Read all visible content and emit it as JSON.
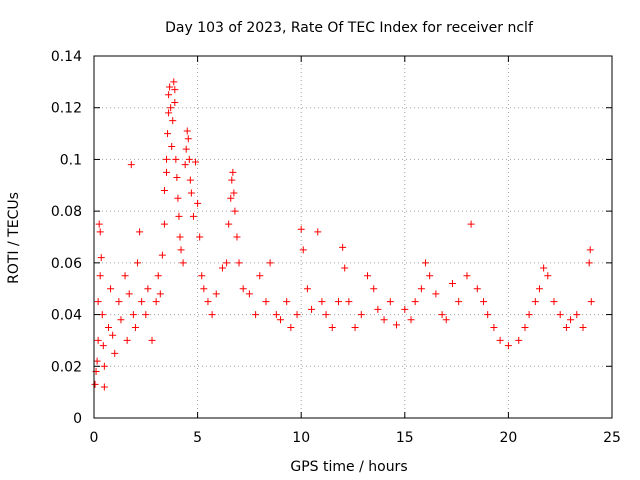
{
  "chart_data": {
    "type": "scatter",
    "title": "Day 103 of 2023, Rate Of TEC Index for receiver nclf",
    "xlabel": "GPS time / hours",
    "ylabel": "ROTI / TECUs",
    "xlim": [
      0,
      25
    ],
    "ylim": [
      0,
      0.14
    ],
    "xticks": [
      0,
      5,
      10,
      15,
      20,
      25
    ],
    "yticks": [
      0,
      0.02,
      0.04,
      0.06,
      0.08,
      0.1,
      0.12,
      0.14
    ],
    "xtick_labels": [
      "0",
      "5",
      "10",
      "15",
      "20",
      "25"
    ],
    "ytick_labels": [
      "0",
      "0.02",
      "0.04",
      "0.06",
      "0.08",
      "0.1",
      "0.12",
      "0.14"
    ],
    "grid": true,
    "marker": "+",
    "marker_color": "#ff0000",
    "series": [
      {
        "name": "ROTI",
        "points": [
          [
            0.05,
            0.013
          ],
          [
            0.1,
            0.018
          ],
          [
            0.15,
            0.022
          ],
          [
            0.2,
            0.03
          ],
          [
            0.2,
            0.045
          ],
          [
            0.25,
            0.075
          ],
          [
            0.3,
            0.072
          ],
          [
            0.3,
            0.055
          ],
          [
            0.35,
            0.062
          ],
          [
            0.4,
            0.04
          ],
          [
            0.45,
            0.028
          ],
          [
            0.5,
            0.02
          ],
          [
            0.5,
            0.012
          ],
          [
            0.7,
            0.035
          ],
          [
            0.8,
            0.05
          ],
          [
            0.9,
            0.032
          ],
          [
            1.0,
            0.025
          ],
          [
            1.2,
            0.045
          ],
          [
            1.3,
            0.038
          ],
          [
            1.5,
            0.055
          ],
          [
            1.6,
            0.03
          ],
          [
            1.7,
            0.048
          ],
          [
            1.8,
            0.098
          ],
          [
            1.9,
            0.04
          ],
          [
            2.0,
            0.035
          ],
          [
            2.1,
            0.06
          ],
          [
            2.2,
            0.072
          ],
          [
            2.3,
            0.045
          ],
          [
            2.5,
            0.04
          ],
          [
            2.6,
            0.05
          ],
          [
            2.8,
            0.03
          ],
          [
            3.0,
            0.045
          ],
          [
            3.1,
            0.055
          ],
          [
            3.2,
            0.048
          ],
          [
            3.3,
            0.063
          ],
          [
            3.4,
            0.075
          ],
          [
            3.4,
            0.088
          ],
          [
            3.5,
            0.1
          ],
          [
            3.5,
            0.095
          ],
          [
            3.55,
            0.11
          ],
          [
            3.6,
            0.118
          ],
          [
            3.6,
            0.125
          ],
          [
            3.65,
            0.128
          ],
          [
            3.7,
            0.12
          ],
          [
            3.75,
            0.105
          ],
          [
            3.8,
            0.115
          ],
          [
            3.85,
            0.13
          ],
          [
            3.9,
            0.127
          ],
          [
            3.9,
            0.122
          ],
          [
            3.95,
            0.1
          ],
          [
            4.0,
            0.093
          ],
          [
            4.05,
            0.085
          ],
          [
            4.1,
            0.078
          ],
          [
            4.15,
            0.07
          ],
          [
            4.2,
            0.065
          ],
          [
            4.3,
            0.06
          ],
          [
            4.4,
            0.098
          ],
          [
            4.45,
            0.104
          ],
          [
            4.5,
            0.111
          ],
          [
            4.55,
            0.108
          ],
          [
            4.6,
            0.1
          ],
          [
            4.65,
            0.092
          ],
          [
            4.7,
            0.087
          ],
          [
            4.8,
            0.078
          ],
          [
            4.9,
            0.099
          ],
          [
            5.0,
            0.083
          ],
          [
            5.1,
            0.07
          ],
          [
            5.2,
            0.055
          ],
          [
            5.3,
            0.05
          ],
          [
            5.5,
            0.045
          ],
          [
            5.7,
            0.04
          ],
          [
            5.9,
            0.048
          ],
          [
            6.2,
            0.058
          ],
          [
            6.4,
            0.06
          ],
          [
            6.5,
            0.075
          ],
          [
            6.6,
            0.085
          ],
          [
            6.65,
            0.092
          ],
          [
            6.7,
            0.095
          ],
          [
            6.75,
            0.087
          ],
          [
            6.8,
            0.08
          ],
          [
            6.9,
            0.07
          ],
          [
            7.0,
            0.06
          ],
          [
            7.2,
            0.05
          ],
          [
            7.5,
            0.048
          ],
          [
            7.8,
            0.04
          ],
          [
            8.0,
            0.055
          ],
          [
            8.3,
            0.045
          ],
          [
            8.5,
            0.06
          ],
          [
            8.8,
            0.04
          ],
          [
            9.0,
            0.038
          ],
          [
            9.3,
            0.045
          ],
          [
            9.5,
            0.035
          ],
          [
            9.8,
            0.04
          ],
          [
            10.0,
            0.073
          ],
          [
            10.1,
            0.065
          ],
          [
            10.3,
            0.05
          ],
          [
            10.5,
            0.042
          ],
          [
            10.8,
            0.072
          ],
          [
            11.0,
            0.045
          ],
          [
            11.2,
            0.04
          ],
          [
            11.5,
            0.035
          ],
          [
            11.8,
            0.045
          ],
          [
            12.0,
            0.066
          ],
          [
            12.1,
            0.058
          ],
          [
            12.3,
            0.045
          ],
          [
            12.6,
            0.035
          ],
          [
            12.9,
            0.04
          ],
          [
            13.2,
            0.055
          ],
          [
            13.5,
            0.05
          ],
          [
            13.7,
            0.042
          ],
          [
            14.0,
            0.038
          ],
          [
            14.3,
            0.045
          ],
          [
            14.6,
            0.036
          ],
          [
            15.0,
            0.042
          ],
          [
            15.3,
            0.038
          ],
          [
            15.5,
            0.045
          ],
          [
            15.8,
            0.05
          ],
          [
            16.0,
            0.06
          ],
          [
            16.2,
            0.055
          ],
          [
            16.5,
            0.048
          ],
          [
            16.8,
            0.04
          ],
          [
            17.0,
            0.038
          ],
          [
            17.3,
            0.052
          ],
          [
            17.6,
            0.045
          ],
          [
            18.0,
            0.055
          ],
          [
            18.2,
            0.075
          ],
          [
            18.5,
            0.05
          ],
          [
            18.8,
            0.045
          ],
          [
            19.0,
            0.04
          ],
          [
            19.3,
            0.035
          ],
          [
            19.6,
            0.03
          ],
          [
            20.0,
            0.028
          ],
          [
            20.5,
            0.03
          ],
          [
            20.8,
            0.035
          ],
          [
            21.0,
            0.04
          ],
          [
            21.3,
            0.045
          ],
          [
            21.5,
            0.05
          ],
          [
            21.7,
            0.058
          ],
          [
            21.9,
            0.055
          ],
          [
            22.2,
            0.045
          ],
          [
            22.5,
            0.04
          ],
          [
            22.8,
            0.035
          ],
          [
            23.0,
            0.038
          ],
          [
            23.3,
            0.04
          ],
          [
            23.6,
            0.035
          ],
          [
            23.9,
            0.06
          ],
          [
            23.95,
            0.065
          ],
          [
            24.0,
            0.045
          ]
        ]
      }
    ]
  }
}
